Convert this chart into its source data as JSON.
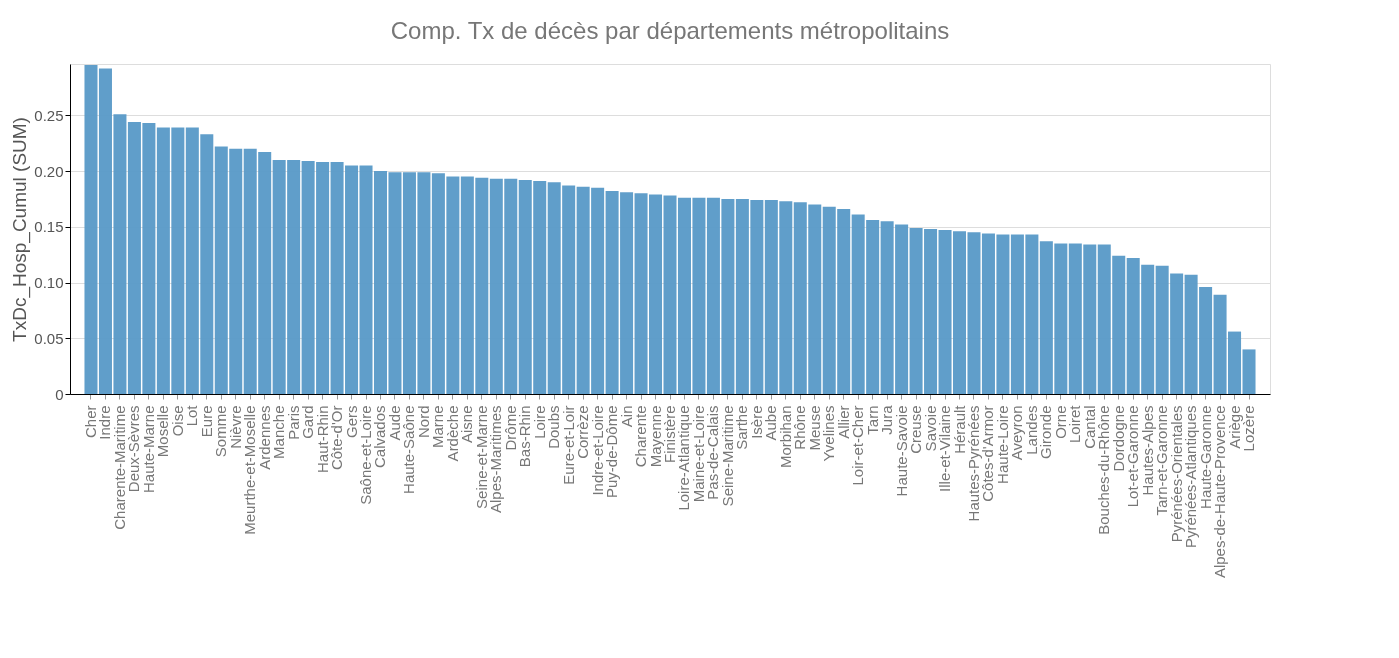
{
  "chart_data": {
    "type": "bar",
    "title": "Comp. Tx de décès par départements métropolitains",
    "ylabel": "TxDc_Hosp_Cumul (SUM)",
    "categories": [
      "Cher",
      "Indre",
      "Charente-Maritime",
      "Deux-Sèvres",
      "Haute-Marne",
      "Moselle",
      "Oise",
      "Lot",
      "Eure",
      "Somme",
      "Nièvre",
      "Meurthe-et-Moselle",
      "Ardennes",
      "Manche",
      "Paris",
      "Gard",
      "Haut-Rhin",
      "Côte-d'Or",
      "Gers",
      "Saône-et-Loire",
      "Calvados",
      "Aude",
      "Haute-Saône",
      "Nord",
      "Marne",
      "Ardèche",
      "Aisne",
      "Seine-et-Marne",
      "Alpes-Maritimes",
      "Drôme",
      "Bas-Rhin",
      "Loire",
      "Doubs",
      "Eure-et-Loir",
      "Corrèze",
      "Indre-et-Loire",
      "Puy-de-Dôme",
      "Ain",
      "Charente",
      "Mayenne",
      "Finistère",
      "Loire-Atlantique",
      "Maine-et-Loire",
      "Pas-de-Calais",
      "Seine-Maritime",
      "Sarthe",
      "Isère",
      "Aube",
      "Morbihan",
      "Rhône",
      "Meuse",
      "Yvelines",
      "Allier",
      "Loir-et-Cher",
      "Tarn",
      "Jura",
      "Haute-Savoie",
      "Creuse",
      "Savoie",
      "Ille-et-Vilaine",
      "Hérault",
      "Hautes-Pyrénées",
      "Côtes-d'Armor",
      "Haute-Loire",
      "Aveyron",
      "Landes",
      "Gironde",
      "Orne",
      "Loiret",
      "Cantal",
      "Bouches-du-Rhône",
      "Dordogne",
      "Lot-et-Garonne",
      "Hautes-Alpes",
      "Tarn-et-Garonne",
      "Pyrénées-Orientales",
      "Pyrénées-Atlantiques",
      "Haute-Garonne",
      "Alpes-de-Haute-Provence",
      "Ariège",
      "Lozère"
    ],
    "values": [
      0.295,
      0.292,
      0.251,
      0.244,
      0.243,
      0.239,
      0.239,
      0.239,
      0.233,
      0.222,
      0.22,
      0.22,
      0.217,
      0.21,
      0.21,
      0.209,
      0.208,
      0.208,
      0.205,
      0.205,
      0.2,
      0.199,
      0.199,
      0.199,
      0.198,
      0.195,
      0.195,
      0.194,
      0.193,
      0.193,
      0.192,
      0.191,
      0.19,
      0.187,
      0.186,
      0.185,
      0.182,
      0.181,
      0.18,
      0.179,
      0.178,
      0.176,
      0.176,
      0.176,
      0.175,
      0.175,
      0.174,
      0.174,
      0.173,
      0.172,
      0.17,
      0.168,
      0.166,
      0.161,
      0.156,
      0.155,
      0.152,
      0.149,
      0.148,
      0.147,
      0.146,
      0.145,
      0.144,
      0.143,
      0.143,
      0.143,
      0.137,
      0.135,
      0.135,
      0.134,
      0.134,
      0.124,
      0.122,
      0.116,
      0.115,
      0.108,
      0.107,
      0.096,
      0.089,
      0.056,
      0.04
    ],
    "color": "#5799c7",
    "ylim": [
      0,
      0.296
    ],
    "yticks": [
      {
        "value": 0,
        "label": "0"
      },
      0.05,
      {
        "value": 0.1,
        "label": "0.10"
      },
      0.15,
      {
        "value": 0.2,
        "label": "0.20"
      },
      0.25
    ],
    "grid": "y"
  }
}
